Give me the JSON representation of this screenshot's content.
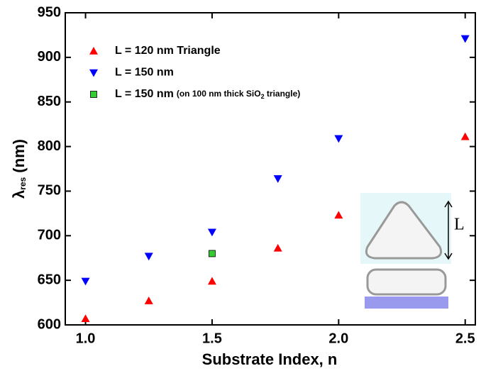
{
  "chart_data": {
    "type": "scatter",
    "x_label": "Substrate Index, n",
    "y_label": {
      "symbol": "λ",
      "subscript": "res",
      "unit": "(nm)"
    },
    "xlim": [
      0.92,
      2.54
    ],
    "xticks": [
      {
        "value": 1.0,
        "label": "1.0"
      },
      {
        "value": 1.5,
        "label": "1.5"
      },
      {
        "value": 2.0,
        "label": "2.0"
      },
      {
        "value": 2.5,
        "label": "2.5"
      }
    ],
    "ylim": [
      600,
      950
    ],
    "yticks": [
      600,
      650,
      700,
      750,
      800,
      850,
      900,
      950
    ],
    "series": [
      {
        "name": "L = 120 nm Triangle",
        "color": "#ff0000",
        "marker": "triangle-up",
        "x": [
          1.0,
          1.25,
          1.5,
          1.76,
          2.0,
          2.5
        ],
        "values": [
          607,
          627,
          649,
          686,
          723,
          811
        ]
      },
      {
        "name": "L = 150 nm",
        "color": "#0000ff",
        "marker": "triangle-down",
        "x": [
          1.0,
          1.25,
          1.5,
          1.76,
          2.0,
          2.5
        ],
        "values": [
          649,
          677,
          704,
          764,
          809,
          921
        ]
      },
      {
        "name": "L = 150 nm",
        "name_note": [
          "(on 100 nm thick SiO",
          "2",
          " triangle)"
        ],
        "color": "#33cc33",
        "marker": "square",
        "x": [
          1.5
        ],
        "values": [
          680
        ]
      }
    ],
    "inset_label": "L"
  }
}
